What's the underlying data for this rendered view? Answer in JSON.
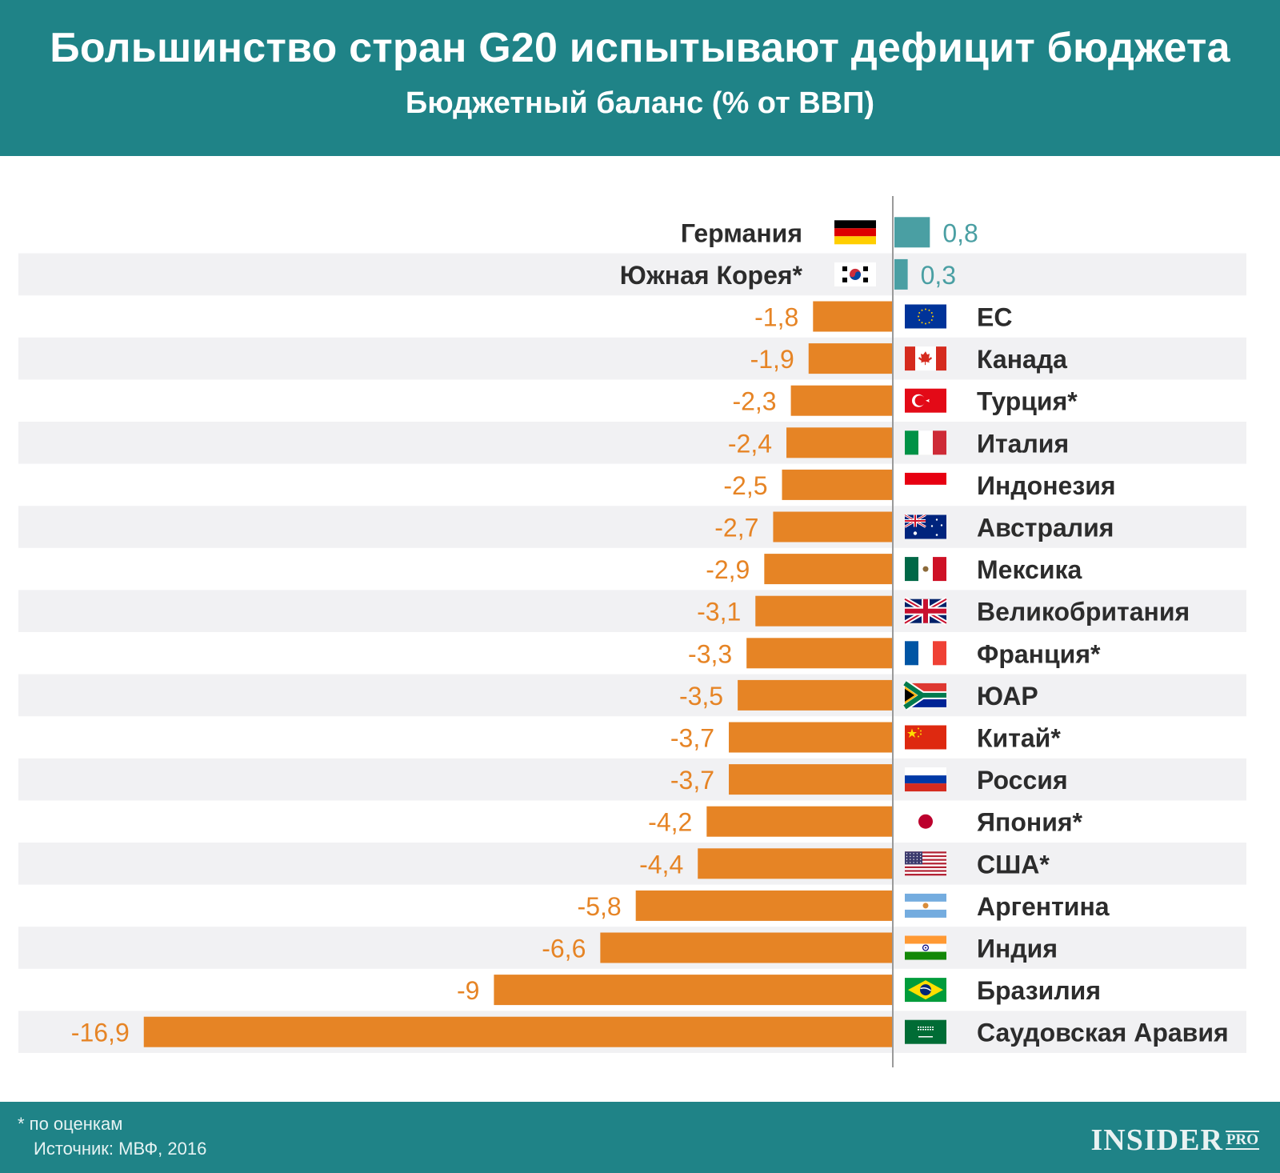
{
  "header": {
    "title": "Большинство стран G20 испытывают дефицит бюджета",
    "subtitle": "Бюджетный баланс (% от ВВП)"
  },
  "colors": {
    "header_bg": "#1f8387",
    "positive_bar": "#4a9fa3",
    "negative_bar": "#e68425",
    "positive_label": "#4a9fa3",
    "negative_label": "#e68425",
    "stripe": "#f1f1f3",
    "axis": "#9a9a9a",
    "country_text": "#2c2c2c"
  },
  "chart_data": {
    "type": "bar",
    "orientation": "horizontal",
    "title": "Большинство стран G20 испытывают дефицит бюджета",
    "subtitle": "Бюджетный баланс (% от ВВП)",
    "xlabel": "",
    "ylabel": "",
    "xlim": [
      -16.9,
      0.8
    ],
    "grid": false,
    "legend": "none",
    "categories": [
      "Германия",
      "Южная Корея*",
      "ЕС",
      "Канада",
      "Турция*",
      "Италия",
      "Индонезия",
      "Австралия",
      "Мексика",
      "Великобритания",
      "Франция*",
      "ЮАР",
      "Китай*",
      "Россия",
      "Япония*",
      "США*",
      "Аргентина",
      "Индия",
      "Бразилия",
      "Саудовская Аравия"
    ],
    "values": [
      0.8,
      0.3,
      -1.8,
      -1.9,
      -2.3,
      -2.4,
      -2.5,
      -2.7,
      -2.9,
      -3.1,
      -3.3,
      -3.5,
      -3.7,
      -3.7,
      -4.2,
      -4.4,
      -5.8,
      -6.6,
      -9,
      -16.9
    ],
    "value_labels": [
      "0,8",
      "0,3",
      "-1,8",
      "-1,9",
      "-2,3",
      "-2,4",
      "-2,5",
      "-2,7",
      "-2,9",
      "-3,1",
      "-3,3",
      "-3,5",
      "-3,7",
      "-3,7",
      "-4,2",
      "-4,4",
      "-5,8",
      "-6,6",
      "-9",
      "-16,9"
    ],
    "flags": [
      "germany-flag",
      "south-korea-flag",
      "eu-flag",
      "canada-flag",
      "turkey-flag",
      "italy-flag",
      "indonesia-flag",
      "australia-flag",
      "mexico-flag",
      "uk-flag",
      "france-flag",
      "south-africa-flag",
      "china-flag",
      "russia-flag",
      "japan-flag",
      "usa-flag",
      "argentina-flag",
      "india-flag",
      "brazil-flag",
      "saudi-arabia-flag"
    ]
  },
  "footer": {
    "note": "* по оценкам",
    "source": "Источник: МВФ, 2016",
    "logo_main": "INSIDER",
    "logo_suffix": "PRO"
  }
}
